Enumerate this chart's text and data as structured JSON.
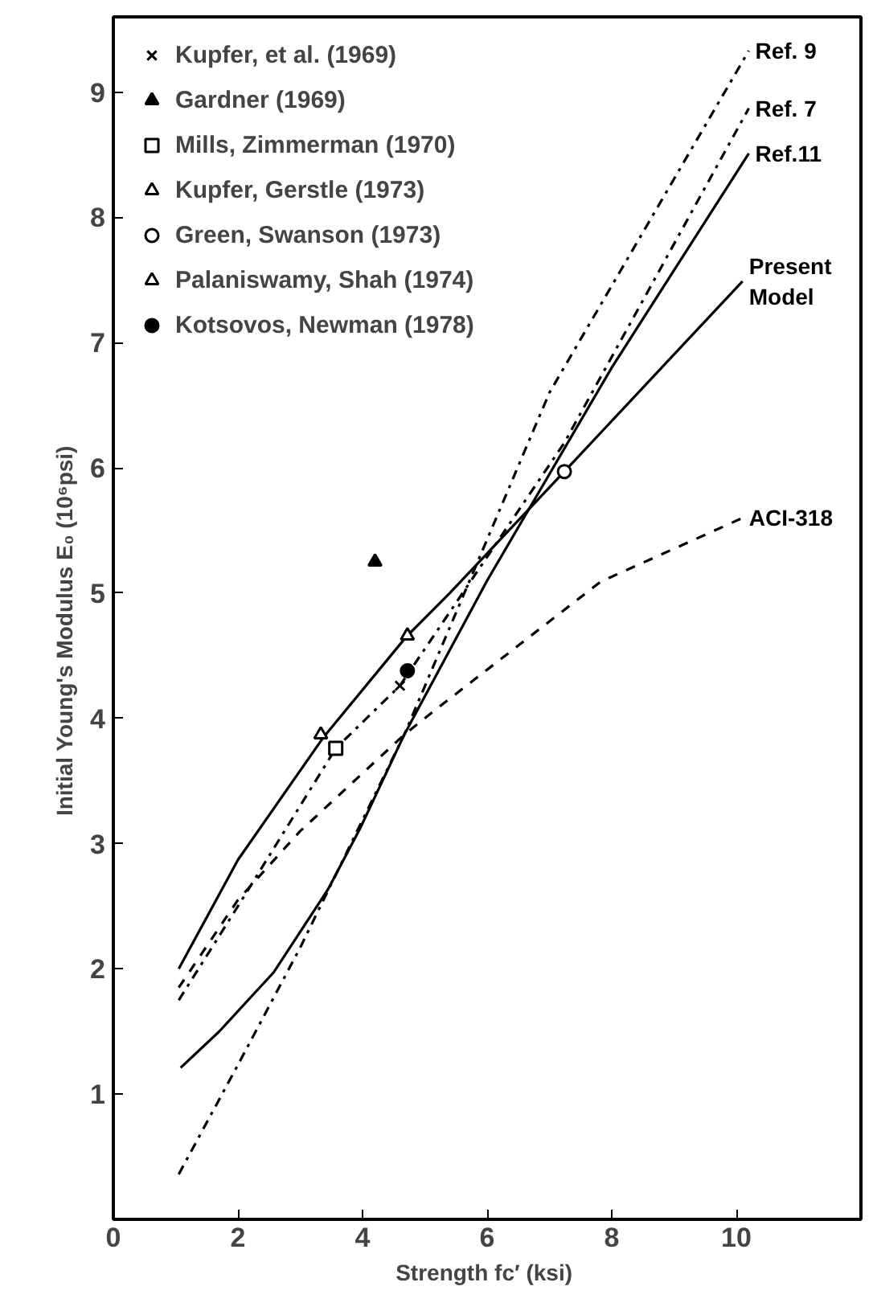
{
  "chart_data": {
    "type": "line",
    "xlabel": "Strength  fc′ (ksi)",
    "ylabel": "Initial  Young's Modulus   E₀  (10⁶psi)",
    "xlim": [
      0,
      12
    ],
    "ylim": [
      0,
      9.6
    ],
    "xticks": [
      0,
      2,
      4,
      6,
      8,
      10
    ],
    "yticks": [
      1,
      2,
      3,
      4,
      5,
      6,
      7,
      8,
      9
    ],
    "grid": false,
    "legend": "top left",
    "series": [
      {
        "name": "Ref. 9",
        "color": "#000000",
        "line_style": "dashdot",
        "x": [
          1.05,
          2.05,
          3.0,
          4.67,
          7.0,
          10.2
        ],
        "values": [
          0.36,
          1.28,
          2.17,
          3.87,
          6.6,
          9.33
        ]
      },
      {
        "name": "Ref. 7",
        "color": "#000000",
        "line_style": "dashdot",
        "x": [
          1.05,
          2.0,
          3.57,
          4.6,
          7.24,
          10.2
        ],
        "values": [
          1.75,
          2.5,
          3.76,
          4.26,
          6.2,
          8.87
        ]
      },
      {
        "name": "Ref.11",
        "color": "#000000",
        "line_style": "solid",
        "x": [
          1.08,
          1.7,
          2.57,
          3.44,
          3.96,
          4.67,
          6.0,
          8.0,
          10.2
        ],
        "values": [
          1.21,
          1.5,
          1.97,
          2.63,
          3.12,
          3.87,
          5.1,
          6.8,
          8.51
        ]
      },
      {
        "name": "Present\nModel",
        "color": "#000000",
        "line_style": "solid",
        "x": [
          1.05,
          2.0,
          3.36,
          4.7,
          5.4,
          7.24,
          10.1
        ],
        "values": [
          2.0,
          2.87,
          3.84,
          4.65,
          5.0,
          5.97,
          7.49
        ]
      },
      {
        "name": "ACI-318",
        "color": "#000000",
        "line_style": "dashed",
        "x": [
          1.05,
          2.0,
          3.0,
          4.67,
          5.2,
          7.82,
          10.1
        ],
        "values": [
          1.85,
          2.55,
          3.1,
          3.87,
          4.08,
          5.09,
          5.6
        ]
      },
      {
        "name": "Kupfer, et al. (1969)",
        "type": "scatter",
        "marker": "cross",
        "color": "#000000",
        "x": [
          4.6
        ],
        "values": [
          4.26
        ]
      },
      {
        "name": "Gardner (1969)",
        "type": "scatter",
        "marker": "triangle",
        "color": "#000000",
        "x": [
          4.2
        ],
        "values": [
          5.25
        ]
      },
      {
        "name": "Mills, Zimmerman (1970)",
        "type": "scatter",
        "marker": "square",
        "color": "#ffffff",
        "x": [
          3.57
        ],
        "values": [
          3.76
        ]
      },
      {
        "name": "Kupfer, Gerstle (1973)",
        "type": "scatter",
        "marker": "triangle",
        "color": "#ffffff",
        "x": [
          4.72
        ],
        "values": [
          4.66
        ]
      },
      {
        "name": "Green, Swanson (1973)",
        "type": "scatter",
        "marker": "circle",
        "color": "#ffffff",
        "x": [
          7.24
        ],
        "values": [
          5.97
        ]
      },
      {
        "name": "Palaniswamy, Shah (1974)",
        "type": "scatter",
        "marker": "triangle",
        "color": "#ffffff",
        "x": [
          3.33
        ],
        "values": [
          3.87
        ]
      },
      {
        "name": "Kotsovos, Newman (1978)",
        "type": "scatter",
        "marker": "circle",
        "color": "#000000",
        "x": [
          4.72
        ],
        "values": [
          4.38
        ]
      }
    ]
  }
}
